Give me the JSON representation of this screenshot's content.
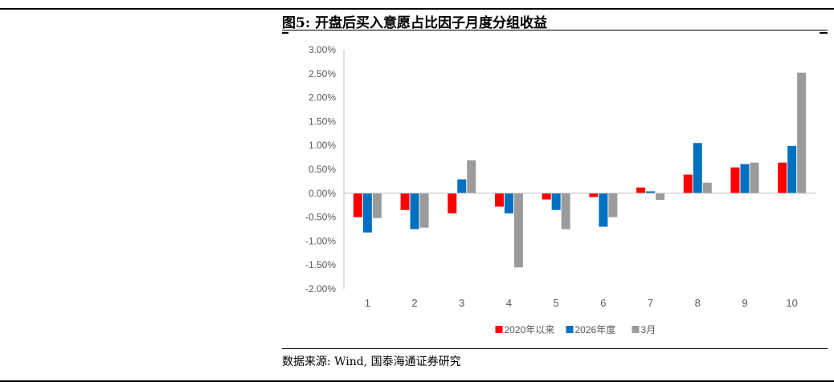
{
  "figure": {
    "title": "图5: 开盘后买入意愿占比因子月度分组收益",
    "source": "数据来源: Wind, 国泰海通证券研究"
  },
  "chart_data": {
    "type": "bar",
    "categories": [
      "1",
      "2",
      "3",
      "4",
      "5",
      "6",
      "7",
      "8",
      "9",
      "10"
    ],
    "series": [
      {
        "name": "2020年以来",
        "color": "#ff0000",
        "values": [
          -0.5,
          -0.35,
          -0.42,
          -0.28,
          -0.13,
          -0.08,
          0.12,
          0.39,
          0.54,
          0.64
        ]
      },
      {
        "name": "2026年度",
        "color": "#0070c0",
        "values": [
          -0.82,
          -0.75,
          0.29,
          -0.42,
          -0.35,
          -0.7,
          0.04,
          1.05,
          0.61,
          0.99
        ]
      },
      {
        "name": "3月",
        "color": "#9b9b9b",
        "values": [
          -0.52,
          -0.72,
          0.69,
          -1.55,
          -0.75,
          -0.5,
          -0.14,
          0.22,
          0.64,
          2.52
        ]
      }
    ],
    "title": "",
    "xlabel": "",
    "ylabel": "",
    "ylim": [
      -2.0,
      3.0
    ],
    "yticks": [
      "-2.00%",
      "-1.50%",
      "-1.00%",
      "-0.50%",
      "0.00%",
      "0.50%",
      "1.00%",
      "1.50%",
      "2.00%",
      "2.50%",
      "3.00%"
    ],
    "grid": false,
    "legend": "bottom"
  }
}
